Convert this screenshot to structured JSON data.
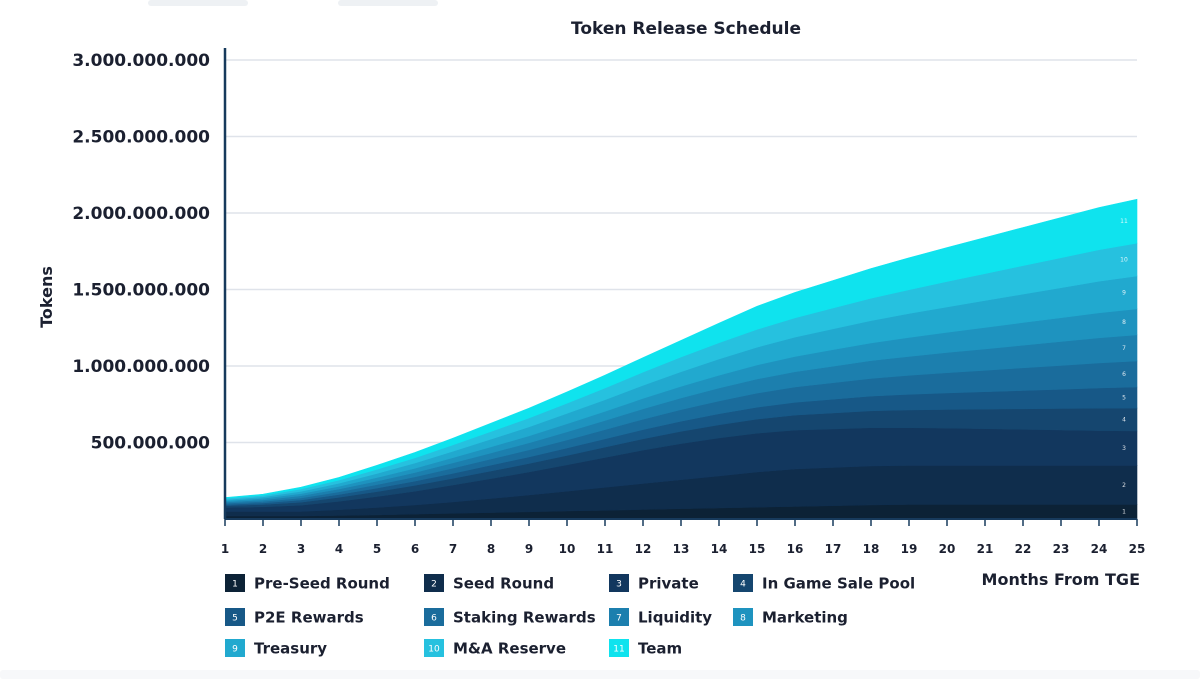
{
  "chart_data": {
    "type": "area",
    "stacked": true,
    "title": "Token Release Schedule",
    "xlabel": "Months From TGE",
    "ylabel": "Tokens",
    "x": [
      1,
      2,
      3,
      4,
      5,
      6,
      7,
      8,
      9,
      10,
      11,
      12,
      13,
      14,
      15,
      16,
      17,
      18,
      19,
      20,
      21,
      22,
      23,
      24,
      25
    ],
    "xlim": [
      1,
      25
    ],
    "ylim": [
      0,
      3000000000
    ],
    "ytick_values": [
      500000000,
      1000000000,
      1500000000,
      2000000000,
      2500000000,
      3000000000
    ],
    "ytick_labels": [
      "500.000.000",
      "1.000.000.000",
      "1.500.000.000",
      "2.000.000.000",
      "2.500.000.000",
      "3.000.000.000"
    ],
    "grid": true,
    "legend_position": "bottom",
    "series": [
      {
        "num": "1",
        "name": "Pre-Seed Round",
        "color": "#0c2236",
        "values": [
          20000000,
          20000000,
          20000000,
          23000000,
          27000000,
          32000000,
          37000000,
          42000000,
          47000000,
          52000000,
          57000000,
          62000000,
          67000000,
          72000000,
          77000000,
          82000000,
          87000000,
          92000000,
          95000000,
          95000000,
          95000000,
          95000000,
          95000000,
          95000000,
          95000000
        ]
      },
      {
        "num": "2",
        "name": "Seed Round",
        "color": "#0f2d4c",
        "values": [
          30000000,
          30000000,
          30000000,
          38000000,
          48000000,
          60000000,
          75000000,
          92000000,
          110000000,
          130000000,
          150000000,
          170000000,
          190000000,
          210000000,
          230000000,
          245000000,
          250000000,
          255000000,
          255000000,
          255000000,
          255000000,
          255000000,
          255000000,
          255000000,
          255000000
        ]
      },
      {
        "num": "3",
        "name": "Private",
        "color": "#12375e",
        "values": [
          25000000,
          30000000,
          40000000,
          55000000,
          72000000,
          90000000,
          110000000,
          130000000,
          150000000,
          172000000,
          195000000,
          218000000,
          236000000,
          248000000,
          254000000,
          254000000,
          252000000,
          250000000,
          247000000,
          244000000,
          240000000,
          236000000,
          232000000,
          228000000,
          225000000
        ]
      },
      {
        "num": "4",
        "name": "In Game Sale Pool",
        "color": "#15466f",
        "values": [
          12000000,
          15000000,
          20000000,
          26000000,
          32000000,
          38000000,
          44000000,
          50000000,
          56000000,
          62000000,
          68000000,
          74000000,
          80000000,
          86000000,
          92000000,
          98000000,
          104000000,
          110000000,
          116000000,
          122000000,
          128000000,
          134000000,
          140000000,
          146000000,
          150000000
        ]
      },
      {
        "num": "5",
        "name": "P2E Rewards",
        "color": "#175887",
        "values": [
          8000000,
          10000000,
          14000000,
          18000000,
          23000000,
          28000000,
          33000000,
          38000000,
          43000000,
          48000000,
          54000000,
          60000000,
          66000000,
          72000000,
          78000000,
          84000000,
          90000000,
          96000000,
          102000000,
          108000000,
          114000000,
          120000000,
          126000000,
          132000000,
          138000000
        ]
      },
      {
        "num": "6",
        "name": "Staking Rewards",
        "color": "#1a6c9c",
        "values": [
          8000000,
          10000000,
          14000000,
          18000000,
          23000000,
          28000000,
          34000000,
          40000000,
          46000000,
          53000000,
          60000000,
          68000000,
          76000000,
          84000000,
          92000000,
          100000000,
          108000000,
          116000000,
          124000000,
          132000000,
          140000000,
          148000000,
          156000000,
          164000000,
          170000000
        ]
      },
      {
        "num": "7",
        "name": "Liquidity",
        "color": "#1c7fae",
        "values": [
          8000000,
          10000000,
          14000000,
          18000000,
          23000000,
          28000000,
          34000000,
          40000000,
          46000000,
          53000000,
          60000000,
          68000000,
          76000000,
          84000000,
          92000000,
          100000000,
          108000000,
          116000000,
          124000000,
          132000000,
          140000000,
          148000000,
          156000000,
          164000000,
          170000000
        ]
      },
      {
        "num": "8",
        "name": "Marketing",
        "color": "#1e93bf",
        "values": [
          8000000,
          10000000,
          14000000,
          18000000,
          23000000,
          28000000,
          34000000,
          40000000,
          46000000,
          53000000,
          60000000,
          68000000,
          76000000,
          84000000,
          92000000,
          100000000,
          108000000,
          116000000,
          124000000,
          132000000,
          140000000,
          148000000,
          156000000,
          164000000,
          170000000
        ]
      },
      {
        "num": "9",
        "name": "Treasury",
        "color": "#21a9cf",
        "values": [
          8000000,
          10000000,
          15000000,
          20000000,
          27000000,
          34000000,
          42000000,
          50000000,
          58000000,
          67000000,
          76000000,
          86000000,
          96000000,
          106000000,
          116000000,
          126000000,
          136000000,
          146000000,
          156000000,
          166000000,
          176000000,
          186000000,
          196000000,
          206000000,
          215000000
        ]
      },
      {
        "num": "10",
        "name": "M&A Reserve",
        "color": "#26c1df",
        "values": [
          8000000,
          10000000,
          15000000,
          20000000,
          27000000,
          34000000,
          42000000,
          50000000,
          58000000,
          67000000,
          76000000,
          86000000,
          96000000,
          106000000,
          116000000,
          126000000,
          136000000,
          146000000,
          156000000,
          166000000,
          176000000,
          186000000,
          196000000,
          206000000,
          215000000
        ]
      },
      {
        "num": "11",
        "name": "Team",
        "color": "#0fe3ee",
        "values": [
          5000000,
          7000000,
          12000000,
          18000000,
          26000000,
          35000000,
          44000000,
          54000000,
          64000000,
          74000000,
          84000000,
          95000000,
          108000000,
          128000000,
          151000000,
          166000000,
          180000000,
          194000000,
          208000000,
          222000000,
          236000000,
          249000000,
          262000000,
          275000000,
          287000000
        ]
      }
    ]
  }
}
